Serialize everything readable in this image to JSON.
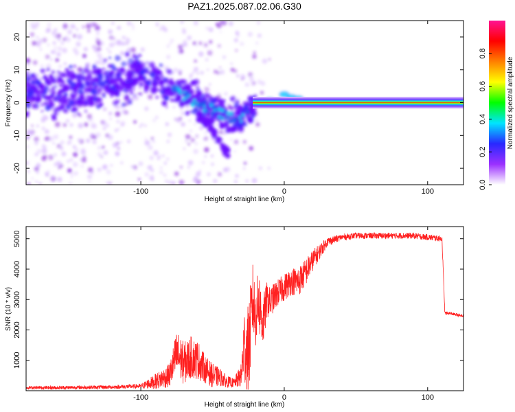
{
  "title": "PAZ1.2025.087.02.06.G30",
  "chart_data": [
    {
      "type": "heatmap",
      "xlabel": "Height of straight line (km)",
      "ylabel": "Frequency (Hz)",
      "xlim": [
        -180,
        125
      ],
      "ylim": [
        -25,
        25
      ],
      "xticks": [
        -100,
        0,
        100
      ],
      "yticks": [
        -20,
        -10,
        0,
        10,
        20
      ],
      "colorbar": {
        "label": "Normalized spectral amplitude",
        "range": [
          0,
          1
        ],
        "ticks": [
          "0.0",
          "0.2",
          "0.4",
          "0.6",
          "0.8"
        ],
        "colors": [
          "#ffffff",
          "#9b30ff",
          "#2828ff",
          "#00e5ff",
          "#00ff00",
          "#ffff00",
          "#ff8000",
          "#ff0000",
          "#ff1493"
        ]
      },
      "ridge": [
        {
          "x": -180,
          "y": 3
        },
        {
          "x": -160,
          "y": 3
        },
        {
          "x": -140,
          "y": 4
        },
        {
          "x": -120,
          "y": 6
        },
        {
          "x": -100,
          "y": 9
        },
        {
          "x": -90,
          "y": 7
        },
        {
          "x": -80,
          "y": 4
        },
        {
          "x": -70,
          "y": 2
        },
        {
          "x": -60,
          "y": 0
        },
        {
          "x": -50,
          "y": -2
        },
        {
          "x": -40,
          "y": -4
        },
        {
          "x": -30,
          "y": -5
        },
        {
          "x": -25,
          "y": -2
        },
        {
          "x": -20,
          "y": 0
        },
        {
          "x": 0,
          "y": 1
        },
        {
          "x": 20,
          "y": 0
        },
        {
          "x": 125,
          "y": 0
        }
      ],
      "tail": [
        {
          "x": -60,
          "y": -4
        },
        {
          "x": -50,
          "y": -8
        },
        {
          "x": -45,
          "y": -12
        },
        {
          "x": -40,
          "y": -15
        },
        {
          "x": -38,
          "y": -16
        }
      ]
    },
    {
      "type": "line",
      "xlabel": "Height of straight line (km)",
      "ylabel": "SNR (10 * v/v)",
      "xlim": [
        -180,
        125
      ],
      "ylim": [
        0,
        5400
      ],
      "xticks": [
        -100,
        0,
        100
      ],
      "yticks": [
        1000,
        2000,
        3000,
        4000,
        5000
      ],
      "color": "#ff2020",
      "series": [
        {
          "x": [
            -180,
            -160,
            -140,
            -120,
            -100,
            -90,
            -80,
            -75,
            -70,
            -65,
            -60,
            -55,
            -50,
            -45,
            -40,
            -35,
            -30,
            -28,
            -25,
            -22,
            -20,
            -18,
            -15,
            -12,
            -10,
            -5,
            0,
            5,
            10,
            15,
            20,
            30,
            40,
            50,
            60,
            70,
            80,
            90,
            100,
            110,
            112,
            115,
            120,
            125
          ],
          "y": [
            100,
            100,
            110,
            120,
            150,
            300,
            500,
            1200,
            900,
            1100,
            1000,
            700,
            500,
            450,
            300,
            250,
            500,
            1500,
            1200,
            3000,
            2400,
            3000,
            2200,
            3000,
            2900,
            3200,
            3400,
            3600,
            3600,
            3900,
            4300,
            4900,
            5050,
            5100,
            5100,
            5100,
            5100,
            5100,
            5050,
            5000,
            2550,
            2550,
            2500,
            2450
          ],
          "spread": [
            100,
            120,
            120,
            120,
            150,
            500,
            800,
            1600,
            1400,
            1400,
            1300,
            900,
            800,
            600,
            400,
            300,
            800,
            2500,
            3200,
            2500,
            2000,
            2200,
            1800,
            1200,
            1000,
            900,
            900,
            900,
            1000,
            900,
            700,
            300,
            200,
            200,
            200,
            200,
            200,
            200,
            200,
            200,
            120,
            100,
            100,
            100
          ]
        }
      ]
    }
  ]
}
